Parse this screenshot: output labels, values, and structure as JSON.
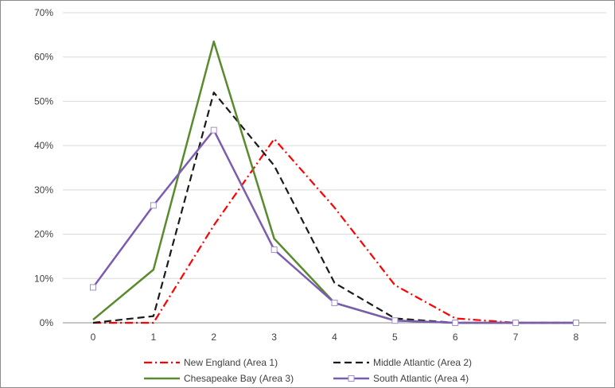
{
  "chart_data": {
    "type": "line",
    "x": [
      0,
      1,
      2,
      3,
      4,
      5,
      6,
      7,
      8
    ],
    "xlim": [
      0,
      8
    ],
    "ylim": [
      0,
      70
    ],
    "y_ticks": [
      0,
      10,
      20,
      30,
      40,
      50,
      60,
      70
    ],
    "y_tick_labels": [
      "0%",
      "10%",
      "20%",
      "30%",
      "40%",
      "50%",
      "60%",
      "70%"
    ],
    "x_tick_labels": [
      "0",
      "1",
      "2",
      "3",
      "4",
      "5",
      "6",
      "7",
      "8"
    ],
    "grid": "horizontal",
    "legend_position": "bottom",
    "series": [
      {
        "name": "New England (Area 1)",
        "values": [
          0,
          0,
          22,
          41.5,
          26,
          8.5,
          1,
          0,
          0
        ],
        "color": "#ff0000",
        "dash": "dash-dot",
        "marker": "none"
      },
      {
        "name": "Middle Atlantic (Area 2)",
        "values": [
          0,
          1.5,
          52,
          35.5,
          9,
          1,
          0,
          0,
          0
        ],
        "color": "#1a1a1a",
        "dash": "dashed",
        "marker": "none"
      },
      {
        "name": "Chesapeake Bay (Area 3)",
        "values": [
          0.7,
          12,
          63.5,
          19,
          4.5,
          0.5,
          0,
          0,
          0
        ],
        "color": "#5a8a2e",
        "dash": "solid",
        "marker": "none"
      },
      {
        "name": "South Atlantic (Area 4)",
        "values": [
          8,
          26.5,
          43.5,
          16.5,
          4.5,
          0.5,
          0,
          0,
          0
        ],
        "color": "#7b5cb0",
        "dash": "solid",
        "marker": "square"
      }
    ]
  }
}
